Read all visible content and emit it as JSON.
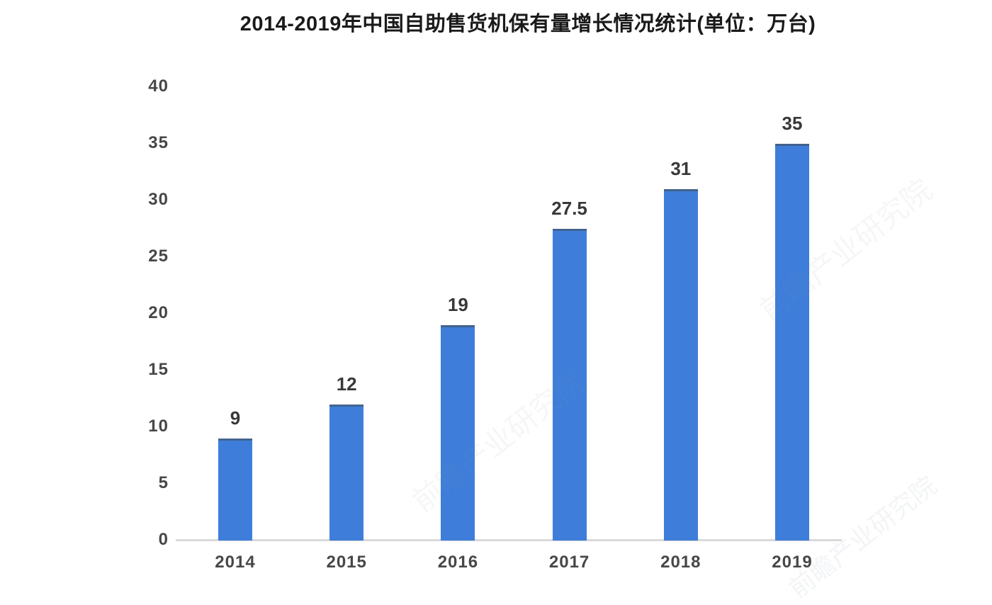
{
  "chart_data": {
    "type": "bar",
    "title": "2014-2019年中国自助售货机保有量增长情况统计(单位：万台)",
    "categories": [
      "2014",
      "2015",
      "2016",
      "2017",
      "2018",
      "2019"
    ],
    "values": [
      9,
      12,
      19,
      27.5,
      31,
      35
    ],
    "value_labels": [
      "9",
      "12",
      "19",
      "27.5",
      "31",
      "35"
    ],
    "y_ticks": [
      0,
      5,
      10,
      15,
      20,
      25,
      30,
      35,
      40
    ],
    "ylim": [
      0,
      40
    ],
    "xlabel": "",
    "ylabel": "",
    "grid": false,
    "legend_position": "none",
    "bar_color": "#3E7EDA",
    "bar_top_edge_color": "rgba(70,85,100,0.65)",
    "axis_line_color": "#d9d9d9",
    "tick_label_color": "#474747",
    "value_label_color": "#383838",
    "title_color": "#1a1a1a",
    "background_color": "#ffffff"
  },
  "watermark": {
    "text": "前瞻产业研究院"
  }
}
